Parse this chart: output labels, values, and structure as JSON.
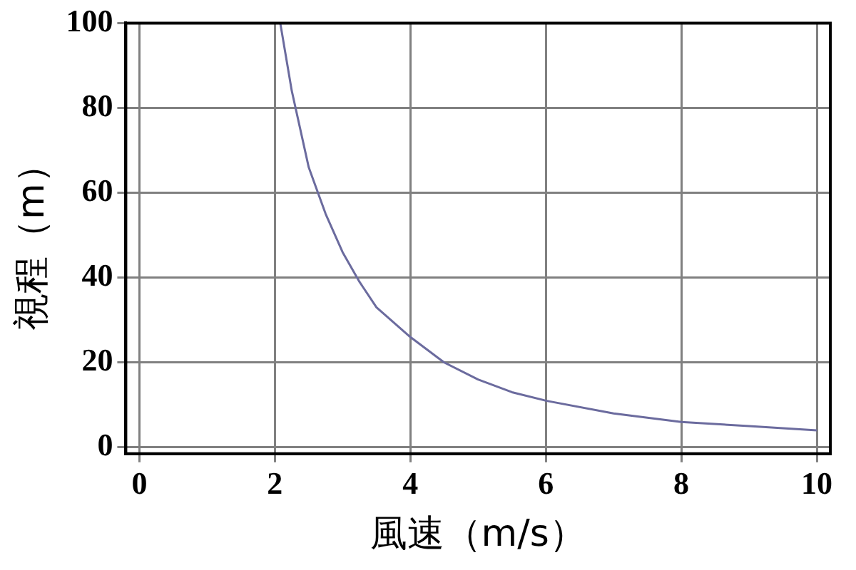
{
  "chart_data": {
    "type": "line",
    "xlabel": "風速（m/s）",
    "ylabel": "視程（m）",
    "x": [
      2.08,
      2.25,
      2.5,
      2.75,
      3,
      3.25,
      3.5,
      4,
      4.5,
      5,
      5.5,
      6,
      7,
      8,
      9,
      10
    ],
    "series": [
      {
        "color": "#6b6b9e",
        "values": [
          100,
          84,
          66,
          55,
          46,
          39,
          33,
          26,
          20,
          16,
          13,
          11,
          8,
          6,
          5,
          4
        ]
      }
    ],
    "xlim": [
      -0.2,
      10.2
    ],
    "xticks": [
      0,
      2,
      4,
      6,
      8,
      10
    ],
    "ylim": [
      -1.5,
      100
    ],
    "yticks": [
      0,
      20,
      40,
      60,
      80,
      100
    ],
    "grid": true,
    "legend": false,
    "marker": "none",
    "line_style": "solid"
  }
}
